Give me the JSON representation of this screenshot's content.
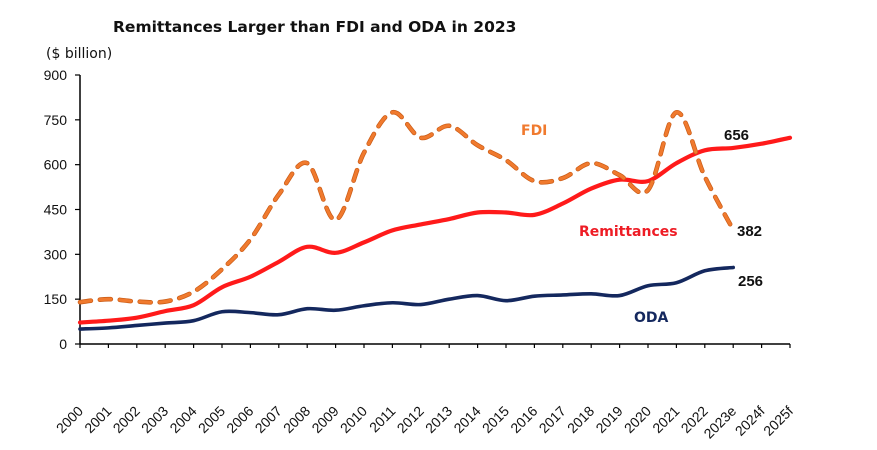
{
  "chart_data": {
    "type": "line",
    "title": "Remittances Larger than FDI and ODA in 2023",
    "ylabel": "($ billion)",
    "xlabel": "",
    "ylim": [
      0,
      900
    ],
    "yticks": [
      0,
      150,
      300,
      450,
      600,
      750,
      900
    ],
    "grid": false,
    "legend": "inline labels",
    "categories": [
      "2000",
      "2001",
      "2002",
      "2003",
      "2004",
      "2005",
      "2006",
      "2007",
      "2008",
      "2009",
      "2010",
      "2011",
      "2012",
      "2013",
      "2014",
      "2015",
      "2016",
      "2017",
      "2018",
      "2019",
      "2020",
      "2021",
      "2022",
      "2023e",
      "2024f",
      "2025f"
    ],
    "series": [
      {
        "name": "Remittances",
        "color": "#ff1a1a",
        "style": "solid",
        "values": [
          72,
          78,
          88,
          110,
          130,
          190,
          225,
          275,
          325,
          305,
          340,
          380,
          400,
          418,
          440,
          440,
          432,
          470,
          520,
          550,
          545,
          605,
          648,
          656,
          670,
          690
        ],
        "end_label": "656"
      },
      {
        "name": "FDI",
        "color": "#f07a2e",
        "style": "dashed",
        "values": [
          140,
          150,
          142,
          142,
          175,
          250,
          350,
          500,
          605,
          415,
          640,
          775,
          690,
          730,
          665,
          615,
          545,
          555,
          605,
          565,
          515,
          775,
          560,
          382,
          null,
          null
        ],
        "end_label": "382"
      },
      {
        "name": "ODA",
        "color": "#14285e",
        "style": "solid",
        "values": [
          50,
          54,
          62,
          70,
          78,
          108,
          105,
          98,
          118,
          113,
          128,
          138,
          132,
          150,
          162,
          145,
          160,
          164,
          168,
          162,
          195,
          205,
          245,
          256,
          null,
          null
        ],
        "end_label": "256"
      }
    ]
  }
}
